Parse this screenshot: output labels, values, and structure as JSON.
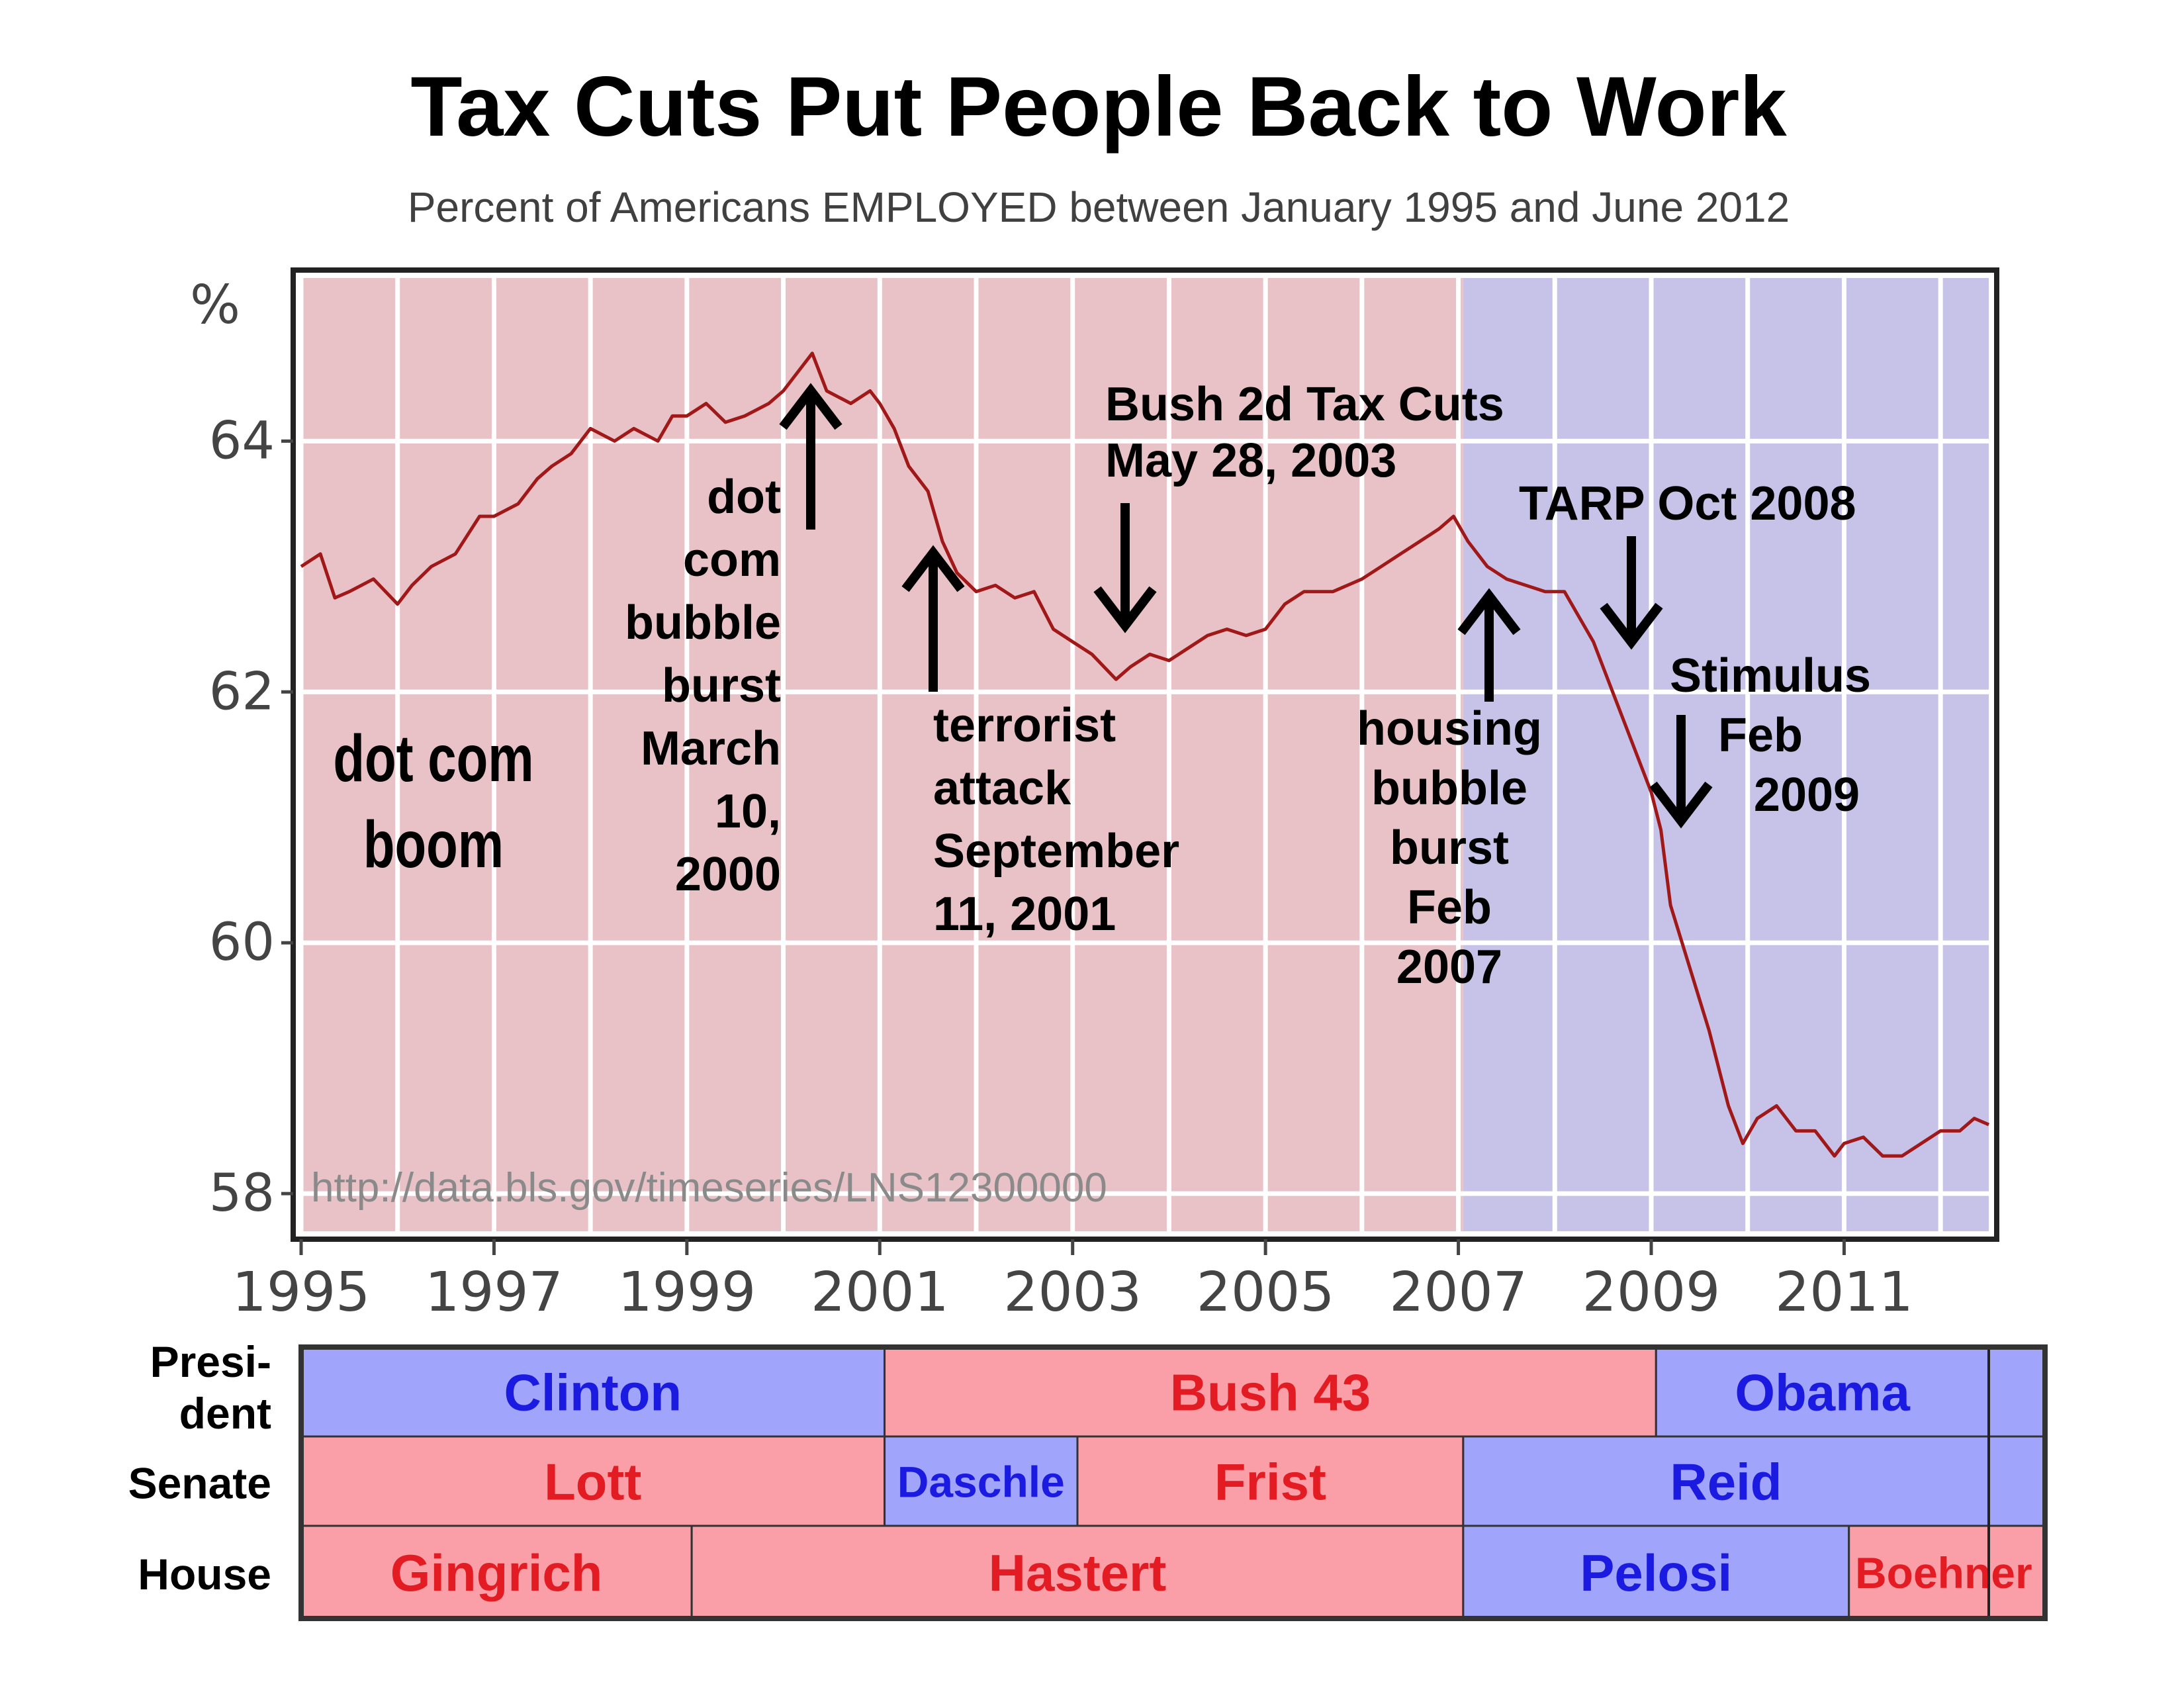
{
  "title": "Tax Cuts Put People Back to Work",
  "subtitle": "Percent of Americans EMPLOYED between January 1995 and June 2012",
  "source_url": "http://data.bls.gov/timeseries/LNS12300000",
  "y_unit": "%",
  "colors": {
    "republican_bg": "#e8c2c7",
    "democrat_bg": "#c7c3e8",
    "line": "#a01818",
    "republican_cell": "#fa9fa8",
    "democrat_cell": "#a0a4fa",
    "republican_text": "#e31b23",
    "democrat_text": "#1a1ae0"
  },
  "annotations": [
    {
      "id": "dotcom-boom",
      "lines": [
        "dot com",
        "boom"
      ]
    },
    {
      "id": "dotcom-burst",
      "lines": [
        "dot",
        "com",
        "bubble",
        "burst",
        "March",
        "10,",
        "2000"
      ]
    },
    {
      "id": "terrorist",
      "lines": [
        "terrorist",
        "attack",
        "September",
        "11, 2001"
      ]
    },
    {
      "id": "bush-tax",
      "lines": [
        "Bush 2d Tax Cuts",
        "May 28, 2003"
      ]
    },
    {
      "id": "tarp",
      "lines": [
        "TARP Oct 2008"
      ]
    },
    {
      "id": "stimulus",
      "lines": [
        "Stimulus",
        "Feb",
        "2009"
      ]
    },
    {
      "id": "housing",
      "lines": [
        "housing",
        "bubble",
        "burst",
        "Feb",
        "2007"
      ]
    }
  ],
  "control_table": {
    "rows": [
      {
        "label_lines": [
          "Presi-",
          "dent"
        ],
        "segments": [
          {
            "label": "Clinton",
            "start": 1995.0,
            "end": 2001.05,
            "party": "D"
          },
          {
            "label": "Bush 43",
            "start": 2001.05,
            "end": 2009.05,
            "party": "R"
          },
          {
            "label": "Obama",
            "start": 2009.05,
            "end": 2012.5,
            "party": "D"
          }
        ]
      },
      {
        "label_lines": [
          "Senate"
        ],
        "segments": [
          {
            "label": "Lott",
            "start": 1995.0,
            "end": 2001.05,
            "party": "R"
          },
          {
            "label": "Daschle",
            "start": 2001.05,
            "end": 2003.05,
            "party": "D"
          },
          {
            "label": "Frist",
            "start": 2003.05,
            "end": 2007.05,
            "party": "R"
          },
          {
            "label": "Reid",
            "start": 2007.05,
            "end": 2012.5,
            "party": "D"
          }
        ]
      },
      {
        "label_lines": [
          "House"
        ],
        "segments": [
          {
            "label": "Gingrich",
            "start": 1995.0,
            "end": 1999.05,
            "party": "R"
          },
          {
            "label": "Hastert",
            "start": 1999.05,
            "end": 2007.05,
            "party": "R"
          },
          {
            "label": "Pelosi",
            "start": 2007.05,
            "end": 2011.05,
            "party": "D"
          },
          {
            "label": "Boehner",
            "start": 2011.05,
            "end": 2012.5,
            "party": "R"
          }
        ]
      }
    ]
  },
  "chart_data": {
    "type": "line",
    "title": "Tax Cuts Put People Back to Work",
    "subtitle": "Percent of Americans EMPLOYED between January 1995 and June 2012",
    "ylabel": "%",
    "xlim": [
      1995.0,
      2012.5
    ],
    "ylim": [
      57.7,
      65.3
    ],
    "x_ticks": [
      1995,
      1997,
      1999,
      2001,
      2003,
      2005,
      2007,
      2009,
      2011
    ],
    "y_ticks": [
      58,
      60,
      62,
      64
    ],
    "grid": true,
    "party_shading": [
      {
        "start": 1995.0,
        "end": 2007.05,
        "party": "R"
      },
      {
        "start": 2007.05,
        "end": 2012.5,
        "party": "D"
      }
    ],
    "series": [
      {
        "x": [
          1995.0,
          1995.2,
          1995.35,
          1995.5,
          1995.75,
          1996.0,
          1996.15,
          1996.35,
          1996.6,
          1996.85,
          1997.0,
          1997.25,
          1997.45,
          1997.6,
          1997.8,
          1998.0,
          1998.25,
          1998.45,
          1998.7,
          1998.85,
          1999.0,
          1999.2,
          1999.4,
          1999.6,
          1999.85,
          2000.0,
          2000.2,
          2000.3,
          2000.45,
          2000.7,
          2000.9,
          2001.0,
          2001.15,
          2001.3,
          2001.5,
          2001.65,
          2001.8,
          2002.0,
          2002.2,
          2002.4,
          2002.6,
          2002.8,
          2003.0,
          2003.2,
          2003.45,
          2003.6,
          2003.8,
          2004.0,
          2004.2,
          2004.4,
          2004.6,
          2004.8,
          2005.0,
          2005.2,
          2005.4,
          2005.7,
          2006.0,
          2006.2,
          2006.4,
          2006.6,
          2006.8,
          2006.95,
          2007.1,
          2007.3,
          2007.5,
          2007.7,
          2007.9,
          2008.1,
          2008.25,
          2008.4,
          2008.6,
          2008.8,
          2009.0,
          2009.1,
          2009.2,
          2009.4,
          2009.6,
          2009.8,
          2009.95,
          2010.1,
          2010.3,
          2010.5,
          2010.7,
          2010.9,
          2011.0,
          2011.2,
          2011.4,
          2011.6,
          2011.8,
          2012.0,
          2012.2,
          2012.35,
          2012.5
        ],
        "y": [
          63.0,
          63.1,
          62.75,
          62.8,
          62.9,
          62.7,
          62.85,
          63.0,
          63.1,
          63.4,
          63.4,
          63.5,
          63.7,
          63.8,
          63.9,
          64.1,
          64.0,
          64.1,
          64.0,
          64.2,
          64.2,
          64.3,
          64.15,
          64.2,
          64.3,
          64.4,
          64.6,
          64.7,
          64.4,
          64.3,
          64.4,
          64.3,
          64.1,
          63.8,
          63.6,
          63.2,
          62.95,
          62.8,
          62.85,
          62.75,
          62.8,
          62.5,
          62.4,
          62.3,
          62.1,
          62.2,
          62.3,
          62.25,
          62.35,
          62.45,
          62.5,
          62.45,
          62.5,
          62.7,
          62.8,
          62.8,
          62.9,
          63.0,
          63.1,
          63.2,
          63.3,
          63.4,
          63.2,
          63.0,
          62.9,
          62.85,
          62.8,
          62.8,
          62.6,
          62.4,
          62.0,
          61.6,
          61.2,
          60.9,
          60.3,
          59.8,
          59.3,
          58.7,
          58.4,
          58.6,
          58.7,
          58.5,
          58.5,
          58.3,
          58.4,
          58.45,
          58.3,
          58.3,
          58.4,
          58.5,
          58.5,
          58.6,
          58.55
        ]
      }
    ]
  }
}
